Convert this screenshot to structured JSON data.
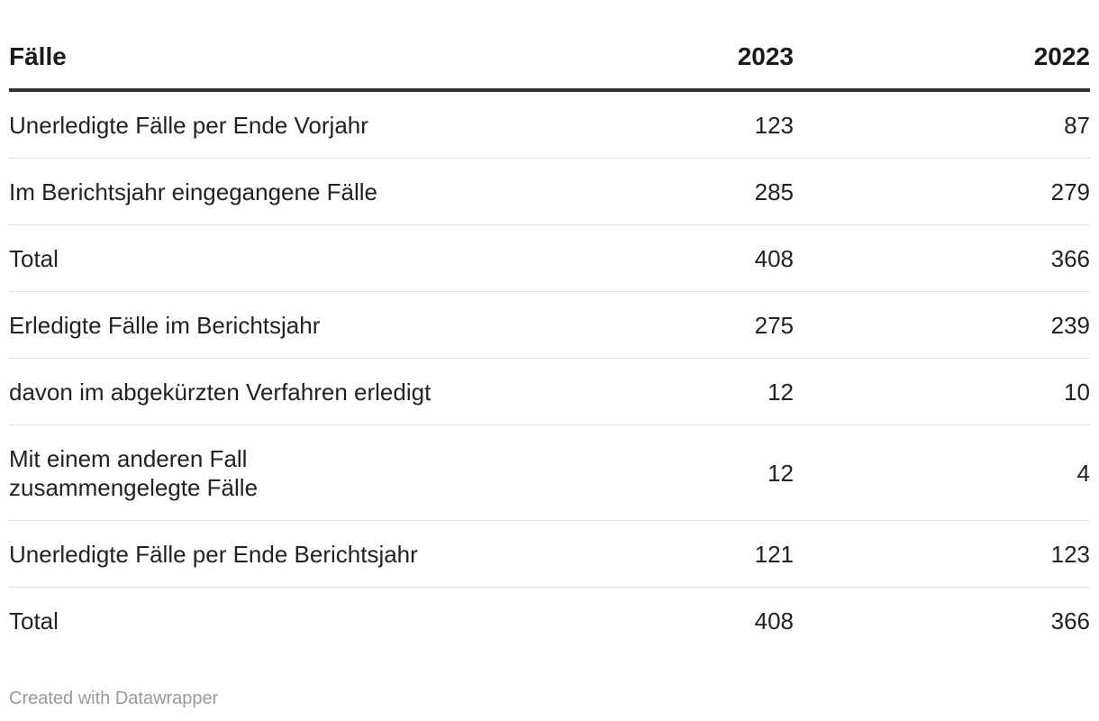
{
  "chart_data": {
    "type": "table",
    "columns": [
      "Fälle",
      "2023",
      "2022"
    ],
    "rows": [
      {
        "label": "Unerledigte Fälle per Ende Vorjahr",
        "v2023": "123",
        "v2022": "87"
      },
      {
        "label": "Im Berichtsjahr eingegangene Fälle",
        "v2023": "285",
        "v2022": "279"
      },
      {
        "label": "Total",
        "v2023": "408",
        "v2022": "366"
      },
      {
        "label": "Erledigte Fälle im Berichtsjahr",
        "v2023": "275",
        "v2022": "239"
      },
      {
        "label": "davon im abgekürzten Verfahren erledigt",
        "v2023": "12",
        "v2022": "10"
      },
      {
        "label": "Mit einem anderen Fall\nzusammengelegte Fälle",
        "v2023": "12",
        "v2022": "4"
      },
      {
        "label": "Unerledigte Fälle per Ende Berichtsjahr",
        "v2023": "121",
        "v2022": "123"
      },
      {
        "label": "Total",
        "v2023": "408",
        "v2022": "366"
      }
    ]
  },
  "footer": {
    "credit": "Created with Datawrapper"
  }
}
